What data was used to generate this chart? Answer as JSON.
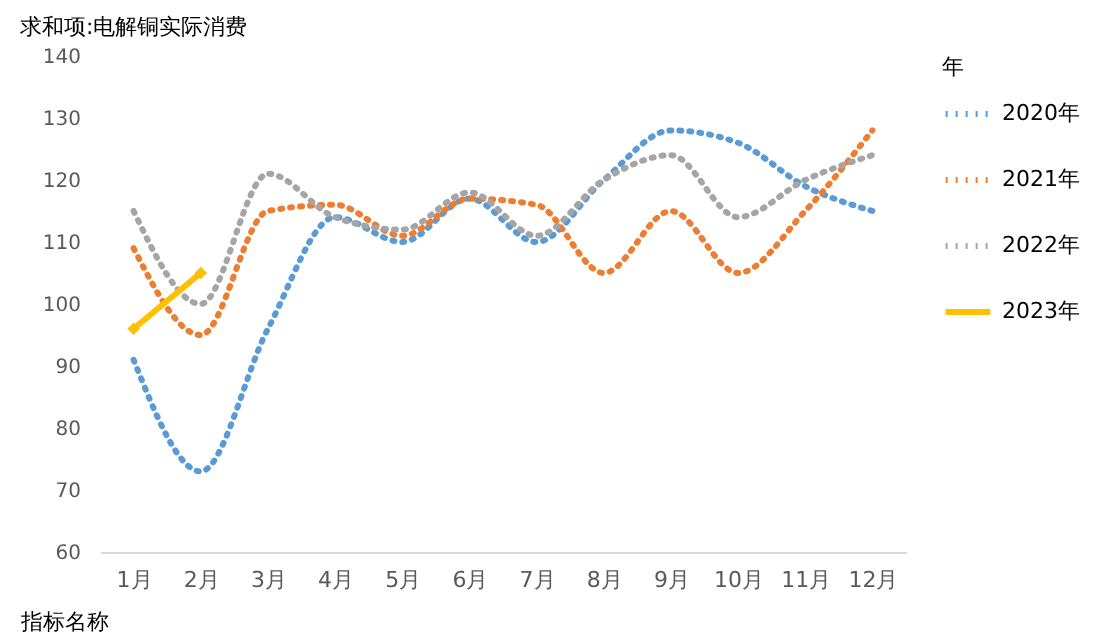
{
  "chart_data": {
    "type": "line",
    "title": "求和项:电解铜实际消费",
    "xlabel": "指标名称",
    "legend_title": "年",
    "legend": "right",
    "grid": false,
    "categories": [
      "1月",
      "2月",
      "3月",
      "4月",
      "5月",
      "6月",
      "7月",
      "8月",
      "9月",
      "10月",
      "11月",
      "12月"
    ],
    "ylim": [
      60,
      140
    ],
    "yticks": [
      60,
      70,
      80,
      90,
      100,
      110,
      120,
      130,
      140
    ],
    "series": [
      {
        "name": "2020年",
        "color": "#5b9bd5",
        "line_style": "dotted",
        "marker": "none",
        "values": [
          91,
          73,
          96,
          114,
          110,
          117,
          110,
          120,
          128,
          126,
          119,
          115
        ]
      },
      {
        "name": "2021年",
        "color": "#ed7d31",
        "line_style": "dotted",
        "marker": "none",
        "values": [
          109,
          95,
          115,
          116,
          111,
          117,
          116,
          105,
          115,
          105,
          115,
          128
        ]
      },
      {
        "name": "2022年",
        "color": "#a5a5a5",
        "line_style": "dotted",
        "marker": "none",
        "values": [
          115,
          100,
          121,
          114,
          112,
          118,
          111,
          120,
          124,
          114,
          120,
          124
        ]
      },
      {
        "name": "2023年",
        "color": "#ffc000",
        "line_style": "solid",
        "marker": "diamond",
        "values": [
          96,
          105,
          null,
          null,
          null,
          null,
          null,
          null,
          null,
          null,
          null,
          null
        ]
      }
    ]
  }
}
